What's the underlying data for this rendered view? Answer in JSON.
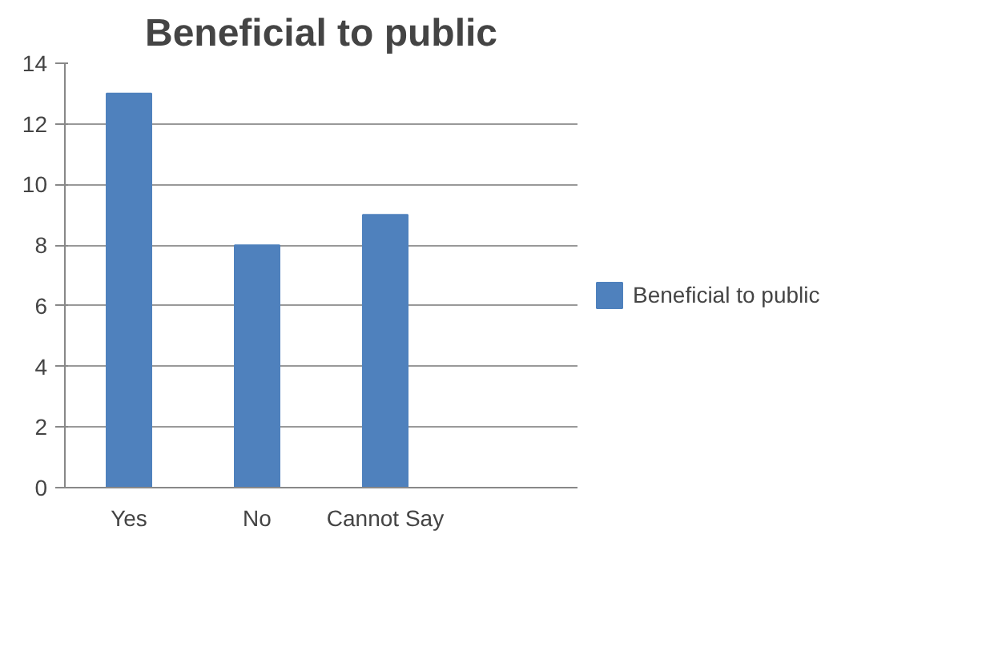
{
  "chart_data": {
    "type": "bar",
    "title": "Beneficial to public",
    "categories": [
      "Yes",
      "No",
      "Cannot Say",
      null
    ],
    "series": [
      {
        "name": "Beneficial to public",
        "color": "#4f81bd",
        "values": [
          13,
          8,
          9,
          null
        ]
      }
    ],
    "ylim": [
      0,
      14
    ],
    "yticks": [
      0,
      2,
      4,
      6,
      8,
      10,
      12,
      14
    ],
    "grid": "y",
    "legend": "right"
  }
}
